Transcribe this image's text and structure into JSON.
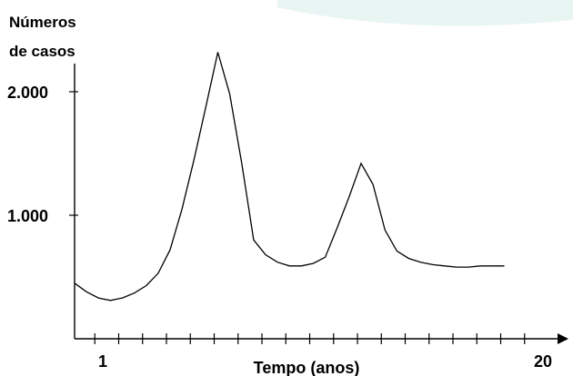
{
  "chart_data": {
    "type": "line",
    "ylabel_lines": [
      "Números",
      "de casos"
    ],
    "xlabel": "Tempo (anos)",
    "x_tick_labels": [
      {
        "x": 1,
        "label": "1"
      },
      {
        "x": 20,
        "label": "20"
      }
    ],
    "y_tick_labels": [
      {
        "y": 1000,
        "label": "1.000"
      },
      {
        "y": 2000,
        "label": "2.000"
      }
    ],
    "xlim": [
      0,
      21
    ],
    "ylim": [
      0,
      2500
    ],
    "x_minor_ticks": [
      1,
      2,
      3,
      4,
      5,
      6,
      7,
      8,
      9,
      10,
      11,
      12,
      13,
      14,
      15,
      16,
      17,
      18,
      19
    ],
    "grid": false,
    "series": [
      {
        "x": [
          0,
          0.5,
          1,
          1.5,
          2,
          2.5,
          3,
          3.5,
          4,
          4.5,
          5,
          5.5,
          6,
          6.5,
          7,
          7.5,
          8,
          8.5,
          9,
          9.5,
          10,
          10.5,
          11,
          11.5,
          12,
          12.5,
          13,
          13.5,
          14,
          14.5,
          15,
          15.5,
          16,
          16.5,
          17,
          17.5,
          18
        ],
        "y": [
          450,
          380,
          330,
          310,
          330,
          370,
          430,
          530,
          720,
          1050,
          1450,
          1880,
          2320,
          1980,
          1420,
          800,
          680,
          620,
          590,
          590,
          610,
          660,
          900,
          1150,
          1420,
          1250,
          880,
          710,
          650,
          620,
          600,
          590,
          580,
          580,
          590,
          590,
          590
        ]
      }
    ],
    "colors": {
      "line": "#000000",
      "axis": "#000000",
      "background": "#ffffff",
      "accent_shape": "#e9f5f2"
    }
  }
}
